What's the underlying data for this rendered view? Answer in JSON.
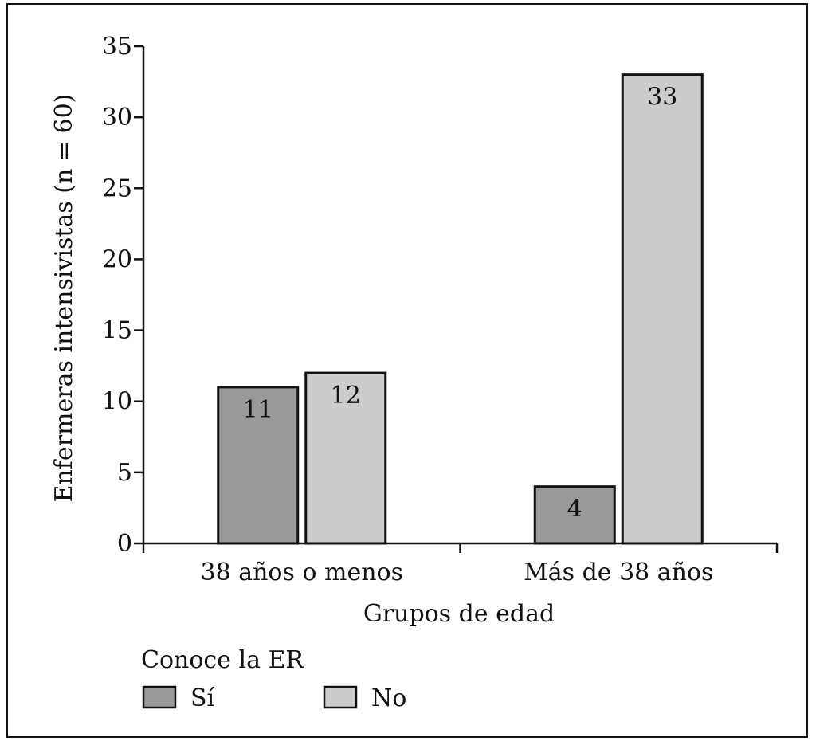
{
  "chart_data": {
    "type": "bar",
    "categories": [
      "38 años o menos",
      "Más de 38 años"
    ],
    "series": [
      {
        "name": "Sí",
        "values": [
          11,
          4
        ],
        "color": "#999999"
      },
      {
        "name": "No",
        "values": [
          12,
          33
        ],
        "color": "#cccccc"
      }
    ],
    "ylabel": "Enfermeras intensivistas (n = 60)",
    "xlabel": "Grupos de edad",
    "ylim": [
      0,
      35
    ],
    "yticks": [
      0,
      5,
      10,
      15,
      20,
      25,
      30,
      35
    ],
    "legend": {
      "title": "Conoce la ER",
      "placement": "bottom-left"
    },
    "grid": false
  }
}
